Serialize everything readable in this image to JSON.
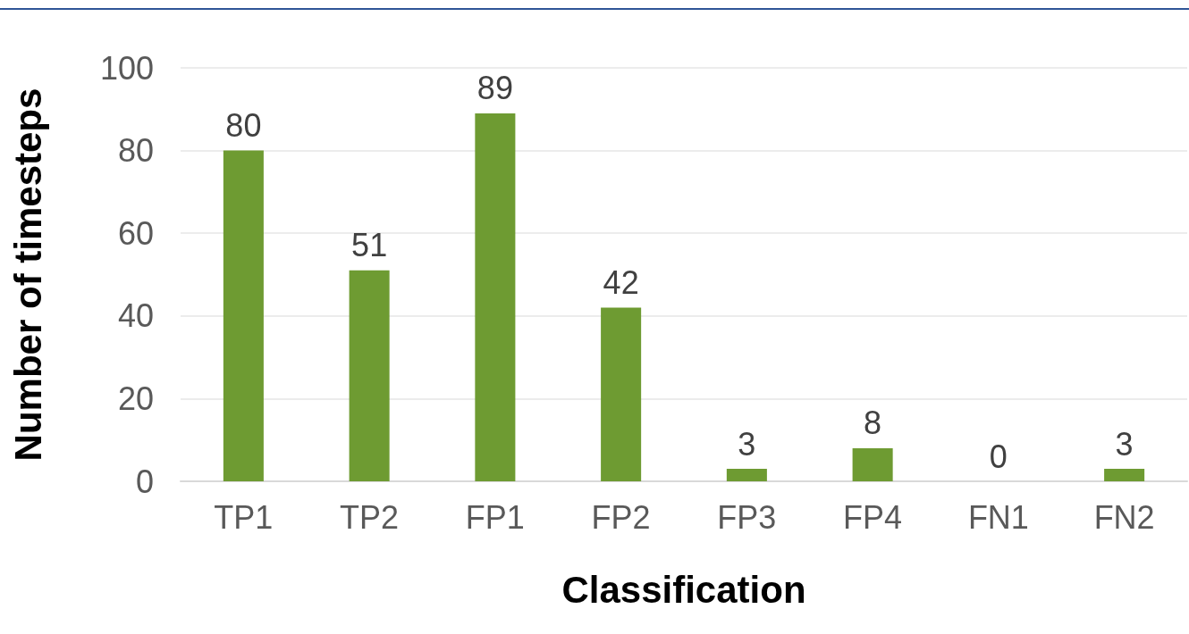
{
  "chart_data": {
    "type": "bar",
    "xlabel": "Classification",
    "ylabel": "Number of timesteps",
    "categories": [
      "TP1",
      "TP2",
      "FP1",
      "FP2",
      "FP3",
      "FP4",
      "FN1",
      "FN2"
    ],
    "values": [
      80,
      51,
      89,
      42,
      3,
      8,
      0,
      3
    ],
    "color": "#6e9b32",
    "ylim": [
      0,
      100
    ],
    "yticks": [
      0,
      20,
      40,
      60,
      80,
      100
    ],
    "grid": "y",
    "data_labels": true
  }
}
